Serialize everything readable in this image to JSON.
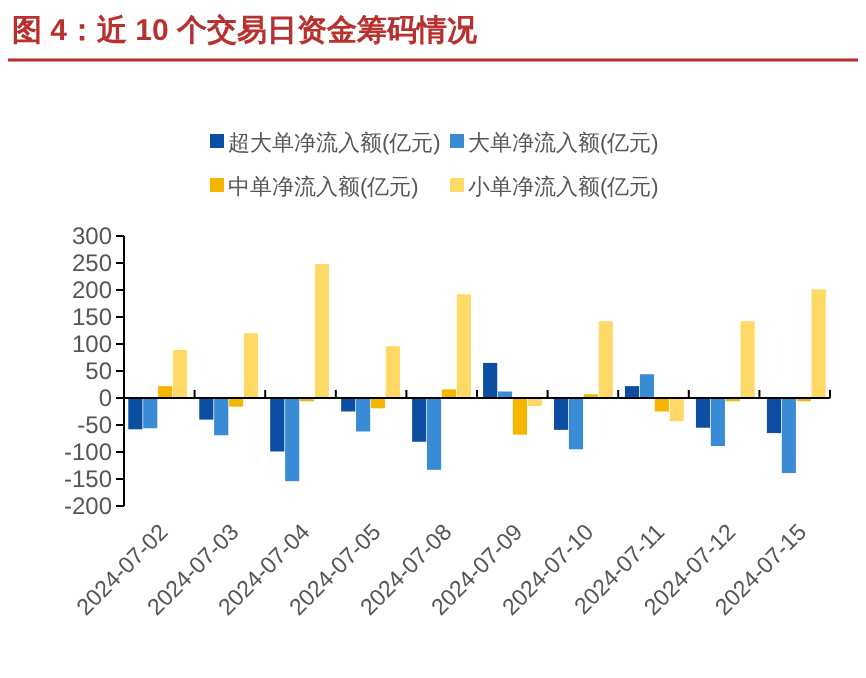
{
  "chart_data": {
    "type": "bar",
    "title": "图 4：近 10 个交易日资金筹码情况",
    "categories": [
      "2024-07-02",
      "2024-07-03",
      "2024-07-04",
      "2024-07-05",
      "2024-07-08",
      "2024-07-09",
      "2024-07-10",
      "2024-07-11",
      "2024-07-12",
      "2024-07-15"
    ],
    "series": [
      {
        "name": "超大单净流入额(亿元)",
        "color": "#0b4ea2",
        "values": [
          -58,
          -40,
          -99,
          -25,
          -81,
          65,
          -59,
          22,
          -55,
          -65
        ]
      },
      {
        "name": "大单净流入额(亿元)",
        "color": "#3a8bd6",
        "values": [
          -56,
          -69,
          -154,
          -62,
          -133,
          12,
          -95,
          44,
          -89,
          -139
        ]
      },
      {
        "name": "中单净流入额(亿元)",
        "color": "#f7b500",
        "values": [
          22,
          -16,
          -6,
          -19,
          16,
          -68,
          7,
          -25,
          -6,
          -6
        ]
      },
      {
        "name": "小单净流入额(亿元)",
        "color": "#ffd966",
        "values": [
          89,
          120,
          248,
          96,
          192,
          -15,
          142,
          -43,
          142,
          201
        ]
      }
    ],
    "ylim": [
      -200,
      300
    ],
    "yticks": [
      -200,
      -150,
      -100,
      -50,
      0,
      50,
      100,
      150,
      200,
      250,
      300
    ],
    "legend": "top"
  }
}
